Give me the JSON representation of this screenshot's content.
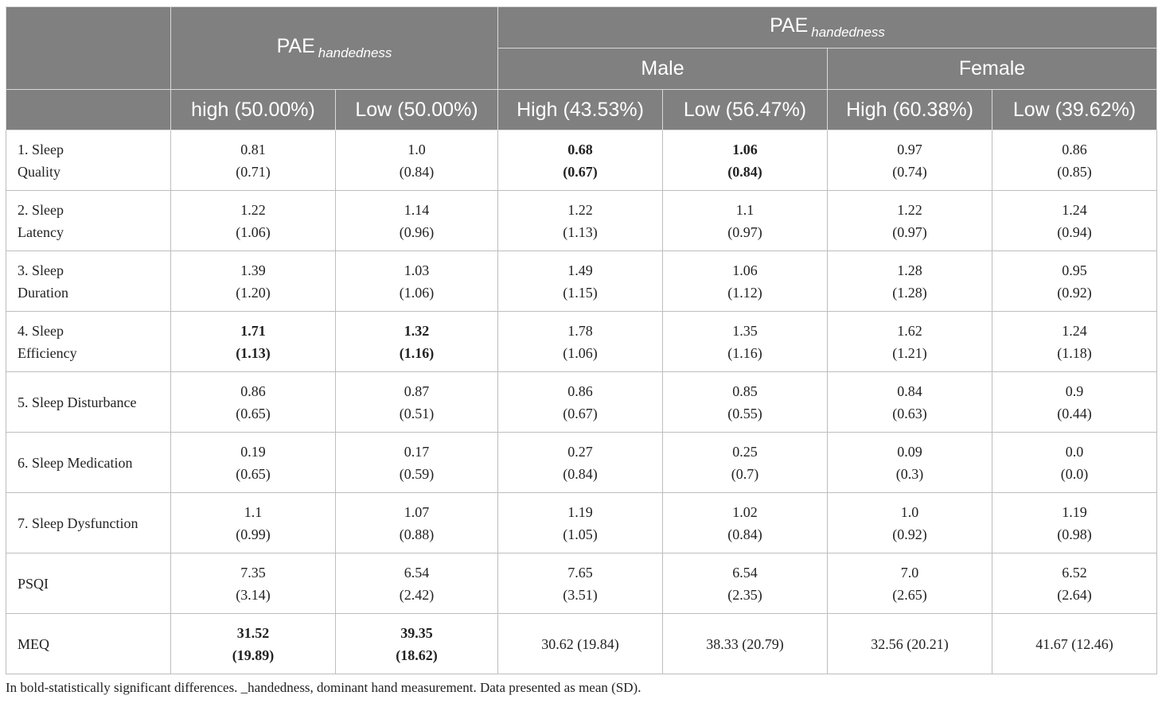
{
  "header": {
    "pae_left": "PAE",
    "pae_left_sub": "handedness",
    "pae_right": "PAE",
    "pae_right_sub": "handedness",
    "male": "Male",
    "female": "Female",
    "cols": [
      "high (50.00%)",
      "Low (50.00%)",
      "High (43.53%)",
      "Low (56.47%)",
      "High (60.38%)",
      "Low (39.62%)"
    ]
  },
  "rows": [
    {
      "label": [
        "1. Sleep",
        "Quality"
      ],
      "cells": [
        {
          "mean": "0.81",
          "sd": "(0.71)",
          "bold": false
        },
        {
          "mean": "1.0",
          "sd": "(0.84)",
          "bold": false
        },
        {
          "mean": "0.68",
          "sd": "(0.67)",
          "bold": true
        },
        {
          "mean": "1.06",
          "sd": "(0.84)",
          "bold": true
        },
        {
          "mean": "0.97",
          "sd": "(0.74)",
          "bold": false
        },
        {
          "mean": "0.86",
          "sd": "(0.85)",
          "bold": false
        }
      ]
    },
    {
      "label": [
        "2. Sleep",
        "Latency"
      ],
      "cells": [
        {
          "mean": "1.22",
          "sd": "(1.06)",
          "bold": false
        },
        {
          "mean": "1.14",
          "sd": "(0.96)",
          "bold": false
        },
        {
          "mean": "1.22",
          "sd": "(1.13)",
          "bold": false
        },
        {
          "mean": "1.1",
          "sd": "(0.97)",
          "bold": false
        },
        {
          "mean": "1.22",
          "sd": "(0.97)",
          "bold": false
        },
        {
          "mean": "1.24",
          "sd": "(0.94)",
          "bold": false
        }
      ]
    },
    {
      "label": [
        "3. Sleep",
        "Duration"
      ],
      "cells": [
        {
          "mean": "1.39",
          "sd": "(1.20)",
          "bold": false
        },
        {
          "mean": "1.03",
          "sd": "(1.06)",
          "bold": false
        },
        {
          "mean": "1.49",
          "sd": "(1.15)",
          "bold": false
        },
        {
          "mean": "1.06",
          "sd": "(1.12)",
          "bold": false
        },
        {
          "mean": "1.28",
          "sd": "(1.28)",
          "bold": false
        },
        {
          "mean": "0.95",
          "sd": "(0.92)",
          "bold": false
        }
      ]
    },
    {
      "label": [
        "4. Sleep",
        "Efficiency"
      ],
      "cells": [
        {
          "mean": "1.71",
          "sd": "(1.13)",
          "bold": true
        },
        {
          "mean": "1.32",
          "sd": "(1.16)",
          "bold": true
        },
        {
          "mean": "1.78",
          "sd": "(1.06)",
          "bold": false
        },
        {
          "mean": "1.35",
          "sd": "(1.16)",
          "bold": false
        },
        {
          "mean": "1.62",
          "sd": "(1.21)",
          "bold": false
        },
        {
          "mean": "1.24",
          "sd": "(1.18)",
          "bold": false
        }
      ]
    },
    {
      "label": [
        "5. Sleep Disturbance"
      ],
      "cells": [
        {
          "mean": "0.86",
          "sd": "(0.65)",
          "bold": false
        },
        {
          "mean": "0.87",
          "sd": "(0.51)",
          "bold": false
        },
        {
          "mean": "0.86",
          "sd": "(0.67)",
          "bold": false
        },
        {
          "mean": "0.85",
          "sd": "(0.55)",
          "bold": false
        },
        {
          "mean": "0.84",
          "sd": "(0.63)",
          "bold": false
        },
        {
          "mean": "0.9",
          "sd": "(0.44)",
          "bold": false
        }
      ]
    },
    {
      "label": [
        "6. Sleep Medication"
      ],
      "cells": [
        {
          "mean": "0.19",
          "sd": "(0.65)",
          "bold": false
        },
        {
          "mean": "0.17",
          "sd": "(0.59)",
          "bold": false
        },
        {
          "mean": "0.27",
          "sd": "(0.84)",
          "bold": false
        },
        {
          "mean": "0.25",
          "sd": "(0.7)",
          "bold": false
        },
        {
          "mean": "0.09",
          "sd": "(0.3)",
          "bold": false
        },
        {
          "mean": "0.0",
          "sd": "(0.0)",
          "bold": false
        }
      ]
    },
    {
      "label": [
        "7. Sleep Dysfunction"
      ],
      "cells": [
        {
          "mean": "1.1",
          "sd": "(0.99)",
          "bold": false
        },
        {
          "mean": "1.07",
          "sd": "(0.88)",
          "bold": false
        },
        {
          "mean": "1.19",
          "sd": "(1.05)",
          "bold": false
        },
        {
          "mean": "1.02",
          "sd": "(0.84)",
          "bold": false
        },
        {
          "mean": "1.0",
          "sd": "(0.92)",
          "bold": false
        },
        {
          "mean": "1.19",
          "sd": "(0.98)",
          "bold": false
        }
      ]
    },
    {
      "label": [
        "PSQI"
      ],
      "cells": [
        {
          "mean": "7.35",
          "sd": "(3.14)",
          "bold": false
        },
        {
          "mean": "6.54",
          "sd": "(2.42)",
          "bold": false
        },
        {
          "mean": "7.65",
          "sd": "(3.51)",
          "bold": false
        },
        {
          "mean": "6.54",
          "sd": "(2.35)",
          "bold": false
        },
        {
          "mean": "7.0",
          "sd": "(2.65)",
          "bold": false
        },
        {
          "mean": "6.52",
          "sd": "(2.64)",
          "bold": false
        }
      ]
    },
    {
      "label": [
        "MEQ"
      ],
      "cells": [
        {
          "mean": "31.52",
          "sd": "(19.89)",
          "bold": true
        },
        {
          "mean": "39.35",
          "sd": "(18.62)",
          "bold": true
        },
        {
          "mean": "30.62 (19.84)",
          "sd": "",
          "bold": false
        },
        {
          "mean": "38.33 (20.79)",
          "sd": "",
          "bold": false
        },
        {
          "mean": "32.56 (20.21)",
          "sd": "",
          "bold": false
        },
        {
          "mean": "41.67 (12.46)",
          "sd": "",
          "bold": false
        }
      ]
    }
  ],
  "footnote": "In bold-statistically significant differences. _handedness, dominant hand measurement. Data presented as mean (SD)."
}
